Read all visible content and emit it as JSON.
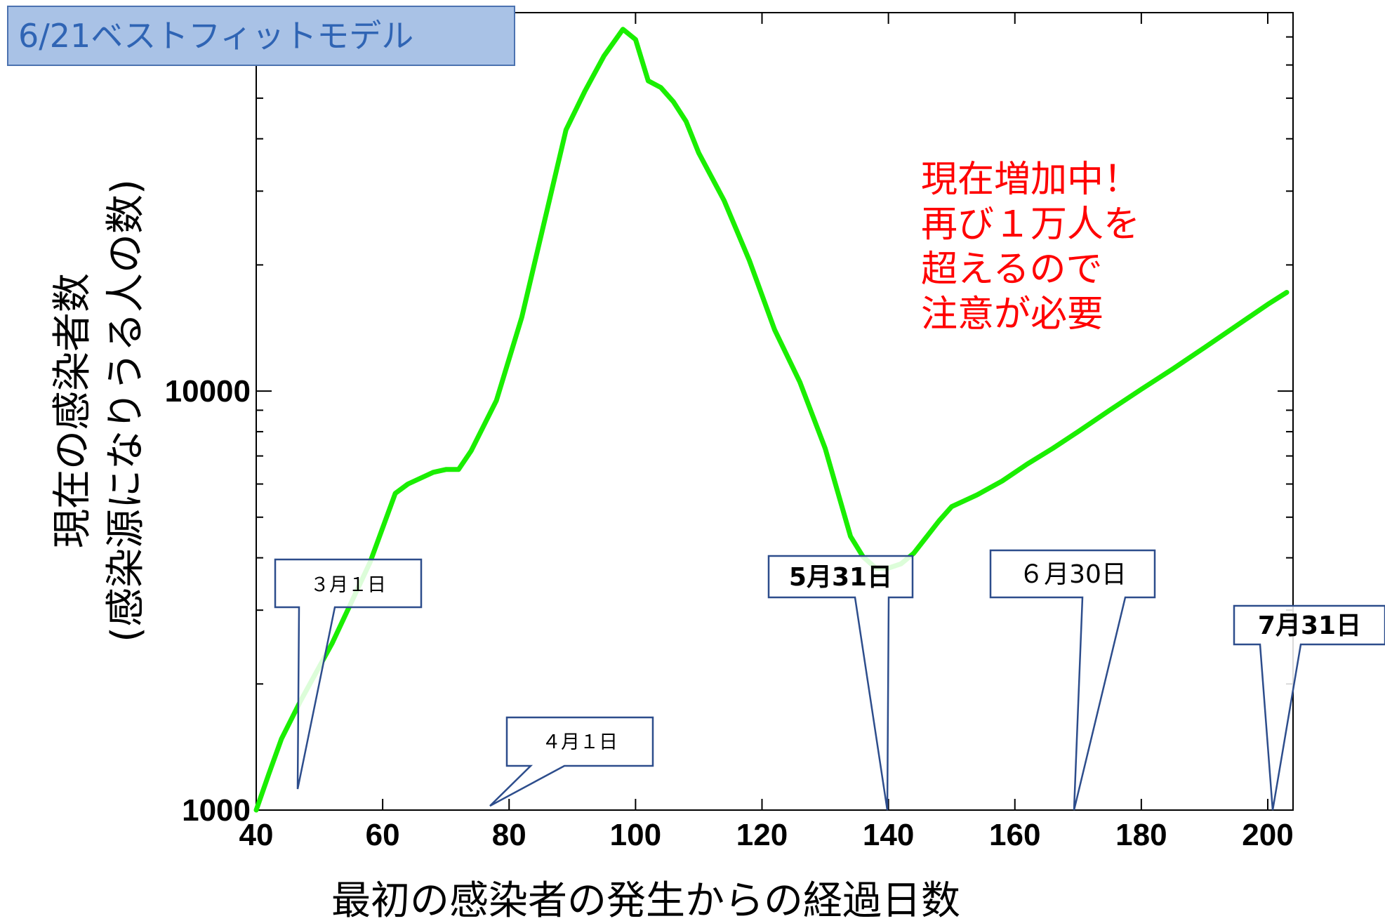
{
  "label_box": {
    "text": "6/21ベストフィットモデル"
  },
  "note": {
    "lines": [
      "現在増加中！",
      "再び１万人を",
      "超えるので",
      "注意が必要"
    ],
    "color": "#ff0000"
  },
  "chart_data": {
    "type": "line",
    "title": "",
    "xlabel": "最初の感染者の発生からの経過日数",
    "ylabel": [
      "現在の感染者数",
      "(感染源になりうる人の数)"
    ],
    "xlim": [
      40,
      204
    ],
    "ylim": [
      1000,
      80000
    ],
    "yscale": "log",
    "x_ticks": [
      40,
      60,
      80,
      100,
      120,
      140,
      160,
      180,
      200
    ],
    "y_tick_labels": [
      {
        "value": 1000,
        "label": "1000"
      },
      {
        "value": 10000,
        "label": "10000"
      }
    ],
    "line_color": "#1aee00",
    "series": [
      {
        "name": "",
        "x": [
          40,
          42,
          44,
          47,
          52,
          58,
          62,
          64,
          68,
          70,
          72,
          74,
          78,
          82,
          86,
          89,
          92,
          95,
          98,
          100,
          102,
          104,
          106,
          108,
          110,
          114,
          118,
          122,
          126,
          130,
          134,
          136,
          138,
          140,
          142,
          144,
          146,
          148,
          150,
          154,
          158,
          162,
          166,
          170,
          175,
          180,
          185,
          190,
          195,
          200,
          203
        ],
        "y": [
          1000,
          1220,
          1480,
          1820,
          2500,
          3900,
          5700,
          6000,
          6400,
          6500,
          6500,
          7200,
          9500,
          15000,
          27000,
          42000,
          52000,
          63000,
          73000,
          69000,
          55000,
          53000,
          49000,
          44000,
          37000,
          28500,
          20500,
          14000,
          10500,
          7300,
          4500,
          4020,
          3780,
          3780,
          3870,
          4100,
          4480,
          4900,
          5300,
          5650,
          6100,
          6700,
          7300,
          8000,
          9000,
          10100,
          11300,
          12700,
          14300,
          16100,
          17200
        ]
      }
    ]
  },
  "callouts": [
    {
      "id": "mar1",
      "label": "３月１日"
    },
    {
      "id": "apr1",
      "label": "４月１日"
    },
    {
      "id": "may31",
      "label": "5月31日"
    },
    {
      "id": "jun30",
      "label": "６月30日"
    },
    {
      "id": "jul31",
      "label": "7月31日"
    }
  ]
}
